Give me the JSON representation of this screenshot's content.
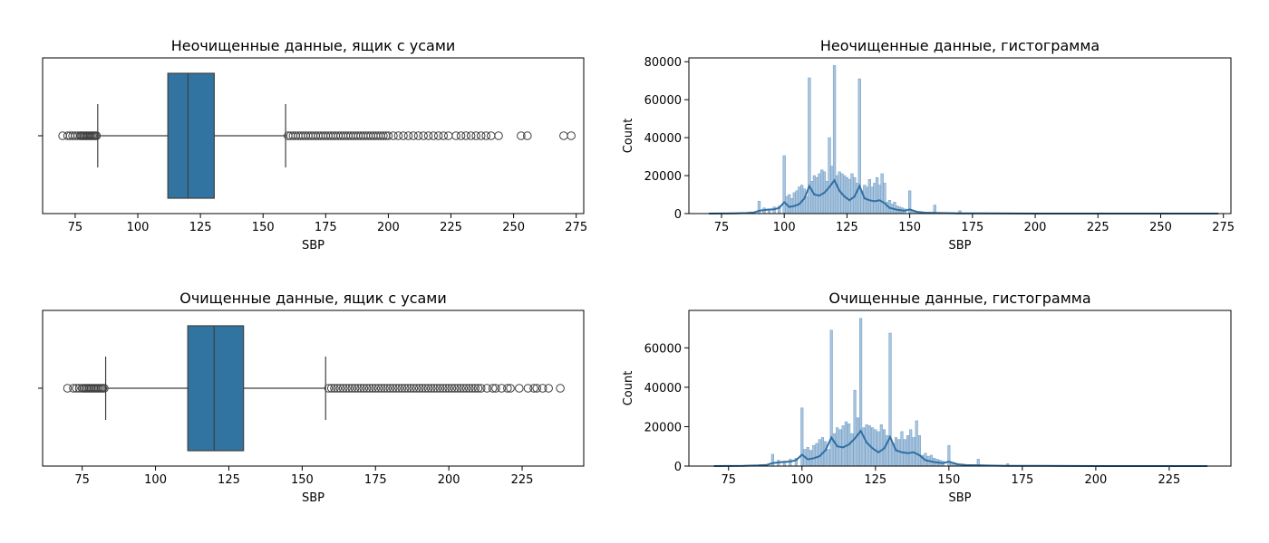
{
  "chart_data": [
    {
      "type": "box",
      "title": "Неочищенные данные, ящик с усами",
      "xlabel": "SBP",
      "ylabel": "",
      "xlim": [
        62,
        278
      ],
      "x_ticks": [
        75,
        100,
        125,
        150,
        175,
        200,
        225,
        250,
        275
      ],
      "box": {
        "q1": 112,
        "median": 120,
        "q3": 130.5,
        "whisker_low": 84,
        "whisker_high": 159
      },
      "outliers_low": [
        70,
        72,
        73,
        74,
        75,
        76,
        77,
        77.5,
        78,
        78.5,
        79,
        79.5,
        80,
        80.5,
        81,
        81.5,
        82,
        82.5,
        83,
        83.5
      ],
      "outliers_high": [
        160,
        161,
        162,
        163,
        164,
        165,
        166,
        167,
        168,
        169,
        170,
        171,
        172,
        173,
        174,
        175,
        176,
        177,
        178,
        179,
        180,
        181,
        182,
        183,
        184,
        185,
        186,
        187,
        188,
        189,
        190,
        191,
        192,
        193,
        194,
        195,
        196,
        197,
        198,
        199,
        200,
        202,
        204,
        206,
        208,
        210,
        212,
        214,
        216,
        218,
        220,
        222,
        224,
        227,
        229,
        231,
        233,
        235,
        237,
        239,
        241,
        244,
        253,
        255.5,
        270,
        273
      ]
    },
    {
      "type": "histogram",
      "title": "Неочищенные данные, гистограмма",
      "xlabel": "SBP",
      "ylabel": "Count",
      "xlim": [
        62,
        278
      ],
      "ylim": [
        0,
        82000
      ],
      "x_ticks": [
        75,
        100,
        125,
        150,
        175,
        200,
        225,
        250,
        275
      ],
      "y_ticks": [
        0,
        20000,
        40000,
        60000,
        80000
      ],
      "bin_width": 1,
      "bars": [
        [
          90,
          6500
        ],
        [
          92,
          3000
        ],
        [
          94,
          2500
        ],
        [
          96,
          3500
        ],
        [
          98,
          4000
        ],
        [
          100,
          30500
        ],
        [
          101,
          9000
        ],
        [
          102,
          10000
        ],
        [
          103,
          8000
        ],
        [
          104,
          11000
        ],
        [
          105,
          12000
        ],
        [
          106,
          14000
        ],
        [
          107,
          15000
        ],
        [
          108,
          13000
        ],
        [
          109,
          9000
        ],
        [
          110,
          71500
        ],
        [
          111,
          17000
        ],
        [
          112,
          20000
        ],
        [
          113,
          19000
        ],
        [
          114,
          21000
        ],
        [
          115,
          23000
        ],
        [
          116,
          22000
        ],
        [
          117,
          17000
        ],
        [
          118,
          40000
        ],
        [
          119,
          25000
        ],
        [
          120,
          78000
        ],
        [
          121,
          20000
        ],
        [
          122,
          22000
        ],
        [
          123,
          21000
        ],
        [
          124,
          20000
        ],
        [
          125,
          19000
        ],
        [
          126,
          18000
        ],
        [
          127,
          21000
        ],
        [
          128,
          19000
        ],
        [
          129,
          16000
        ],
        [
          130,
          71000
        ],
        [
          131,
          12000
        ],
        [
          132,
          15000
        ],
        [
          133,
          14000
        ],
        [
          134,
          18000
        ],
        [
          135,
          14000
        ],
        [
          136,
          16000
        ],
        [
          137,
          19000
        ],
        [
          138,
          15000
        ],
        [
          139,
          21000
        ],
        [
          140,
          16000
        ],
        [
          141,
          6000
        ],
        [
          142,
          7000
        ],
        [
          143,
          5000
        ],
        [
          144,
          6000
        ],
        [
          145,
          4000
        ],
        [
          146,
          3500
        ],
        [
          147,
          3000
        ],
        [
          148,
          2500
        ],
        [
          150,
          12000
        ],
        [
          151,
          1500
        ],
        [
          152,
          1200
        ],
        [
          153,
          1000
        ],
        [
          155,
          800
        ],
        [
          157,
          700
        ],
        [
          160,
          4500
        ],
        [
          165,
          600
        ],
        [
          170,
          1500
        ],
        [
          180,
          400
        ]
      ],
      "kde": [
        [
          70,
          0
        ],
        [
          80,
          100
        ],
        [
          85,
          300
        ],
        [
          88,
          600
        ],
        [
          90,
          1500
        ],
        [
          93,
          2000
        ],
        [
          96,
          2300
        ],
        [
          98,
          3000
        ],
        [
          100,
          6000
        ],
        [
          102,
          3500
        ],
        [
          104,
          4000
        ],
        [
          106,
          5000
        ],
        [
          108,
          8000
        ],
        [
          110,
          14500
        ],
        [
          112,
          10000
        ],
        [
          114,
          9500
        ],
        [
          116,
          11000
        ],
        [
          118,
          14000
        ],
        [
          120,
          17500
        ],
        [
          122,
          12000
        ],
        [
          124,
          9000
        ],
        [
          126,
          7000
        ],
        [
          128,
          9000
        ],
        [
          130,
          14500
        ],
        [
          132,
          8000
        ],
        [
          134,
          7000
        ],
        [
          136,
          6500
        ],
        [
          138,
          7000
        ],
        [
          140,
          5500
        ],
        [
          142,
          3000
        ],
        [
          145,
          2000
        ],
        [
          148,
          1500
        ],
        [
          150,
          2200
        ],
        [
          153,
          900
        ],
        [
          156,
          500
        ],
        [
          160,
          400
        ],
        [
          165,
          250
        ],
        [
          170,
          150
        ],
        [
          180,
          80
        ],
        [
          200,
          20
        ],
        [
          230,
          5
        ],
        [
          273,
          0
        ]
      ]
    },
    {
      "type": "box",
      "title": "Очищенные данные, ящик с усами",
      "xlabel": "SBP",
      "ylabel": "",
      "xlim": [
        61.5,
        246
      ],
      "x_ticks": [
        75,
        100,
        125,
        150,
        175,
        200,
        225
      ],
      "box": {
        "q1": 111,
        "median": 120,
        "q3": 130,
        "whisker_low": 83,
        "whisker_high": 158
      },
      "outliers_low": [
        70,
        72,
        73,
        74,
        75,
        75.5,
        76,
        76.5,
        77,
        77.5,
        78,
        78.5,
        79,
        79.5,
        80,
        80.5,
        81,
        81.5,
        82,
        82.5
      ],
      "outliers_high": [
        159,
        160,
        161,
        162,
        163,
        164,
        165,
        166,
        167,
        168,
        169,
        170,
        171,
        172,
        173,
        174,
        175,
        176,
        177,
        178,
        179,
        180,
        181,
        182,
        183,
        184,
        185,
        186,
        187,
        188,
        189,
        190,
        191,
        192,
        193,
        194,
        195,
        196,
        197,
        198,
        199,
        200,
        201,
        202,
        203,
        204,
        205,
        206,
        207,
        208,
        209,
        210,
        211,
        213,
        215,
        216,
        218,
        220,
        221,
        224,
        227,
        229,
        230,
        232,
        234,
        238
      ]
    },
    {
      "type": "histogram",
      "title": "Очищенные данные, гистограмма",
      "xlabel": "SBP",
      "ylabel": "Count",
      "xlim": [
        61.5,
        246
      ],
      "ylim": [
        0,
        79000
      ],
      "x_ticks": [
        75,
        100,
        125,
        150,
        175,
        200,
        225
      ],
      "y_ticks": [
        0,
        20000,
        40000,
        60000
      ],
      "bin_width": 0.8,
      "bars": [
        [
          90,
          6000
        ],
        [
          92,
          3000
        ],
        [
          94,
          2500
        ],
        [
          96,
          3500
        ],
        [
          98,
          4000
        ],
        [
          100,
          29500
        ],
        [
          101,
          8500
        ],
        [
          102,
          9500
        ],
        [
          103,
          8000
        ],
        [
          104,
          10500
        ],
        [
          105,
          11500
        ],
        [
          106,
          13500
        ],
        [
          107,
          14500
        ],
        [
          108,
          12500
        ],
        [
          109,
          8500
        ],
        [
          110,
          69000
        ],
        [
          111,
          16500
        ],
        [
          112,
          19500
        ],
        [
          113,
          18500
        ],
        [
          114,
          20500
        ],
        [
          115,
          22500
        ],
        [
          116,
          21500
        ],
        [
          117,
          16500
        ],
        [
          118,
          38500
        ],
        [
          119,
          24500
        ],
        [
          120,
          75000
        ],
        [
          121,
          19500
        ],
        [
          122,
          21000
        ],
        [
          123,
          20500
        ],
        [
          124,
          19500
        ],
        [
          125,
          18500
        ],
        [
          126,
          17500
        ],
        [
          127,
          21000
        ],
        [
          128,
          18500
        ],
        [
          129,
          15500
        ],
        [
          130,
          67500
        ],
        [
          131,
          11500
        ],
        [
          132,
          14500
        ],
        [
          133,
          13500
        ],
        [
          134,
          17500
        ],
        [
          135,
          13500
        ],
        [
          136,
          15500
        ],
        [
          137,
          18500
        ],
        [
          138,
          14500
        ],
        [
          139,
          23000
        ],
        [
          140,
          15500
        ],
        [
          141,
          5500
        ],
        [
          142,
          6500
        ],
        [
          143,
          5000
        ],
        [
          144,
          5500
        ],
        [
          145,
          4000
        ],
        [
          146,
          3500
        ],
        [
          147,
          3000
        ],
        [
          148,
          2500
        ],
        [
          150,
          10500
        ],
        [
          151,
          1500
        ],
        [
          152,
          1200
        ],
        [
          153,
          1000
        ],
        [
          155,
          800
        ],
        [
          157,
          700
        ],
        [
          160,
          3500
        ],
        [
          165,
          500
        ],
        [
          170,
          1200
        ],
        [
          180,
          300
        ]
      ],
      "kde": [
        [
          70,
          0
        ],
        [
          80,
          100
        ],
        [
          85,
          300
        ],
        [
          88,
          600
        ],
        [
          90,
          1500
        ],
        [
          93,
          2000
        ],
        [
          96,
          2300
        ],
        [
          98,
          3000
        ],
        [
          100,
          5800
        ],
        [
          102,
          3400
        ],
        [
          104,
          4000
        ],
        [
          106,
          5000
        ],
        [
          108,
          8000
        ],
        [
          110,
          14500
        ],
        [
          112,
          10000
        ],
        [
          114,
          9500
        ],
        [
          116,
          11000
        ],
        [
          118,
          14000
        ],
        [
          120,
          17800
        ],
        [
          122,
          12000
        ],
        [
          124,
          9000
        ],
        [
          126,
          7000
        ],
        [
          128,
          9000
        ],
        [
          130,
          14800
        ],
        [
          132,
          8000
        ],
        [
          134,
          7000
        ],
        [
          136,
          6500
        ],
        [
          138,
          7000
        ],
        [
          140,
          5500
        ],
        [
          142,
          3000
        ],
        [
          145,
          2000
        ],
        [
          148,
          1500
        ],
        [
          150,
          2200
        ],
        [
          153,
          900
        ],
        [
          156,
          500
        ],
        [
          160,
          400
        ],
        [
          165,
          250
        ],
        [
          170,
          150
        ],
        [
          180,
          80
        ],
        [
          200,
          20
        ],
        [
          238,
          0
        ]
      ]
    }
  ]
}
